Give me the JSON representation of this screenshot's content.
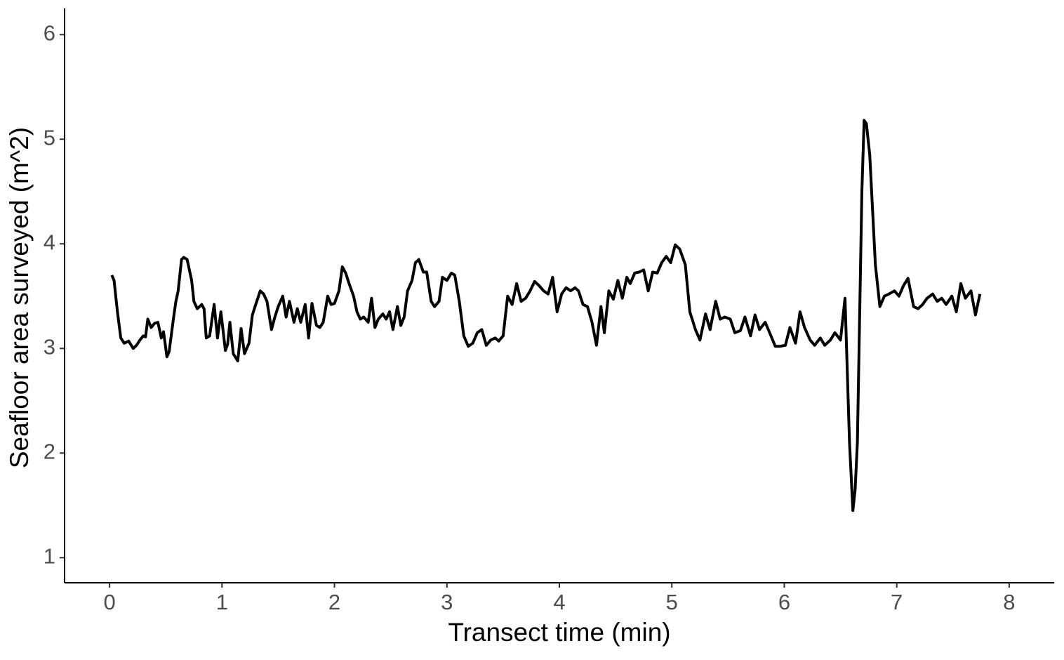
{
  "chart_data": {
    "type": "line",
    "x_label": "Transect time (min)",
    "y_label": "Seafloor area surveyed (m^2)",
    "color": "#000000",
    "xlim": [
      -0.4,
      8.4
    ],
    "ylim": [
      0.76,
      6.25
    ],
    "xticks": [
      0,
      1,
      2,
      3,
      4,
      5,
      6,
      7,
      8
    ],
    "yticks": [
      1,
      2,
      3,
      4,
      5,
      6
    ],
    "grid": false,
    "x": [
      0.02,
      0.04,
      0.07,
      0.1,
      0.13,
      0.17,
      0.21,
      0.24,
      0.27,
      0.3,
      0.32,
      0.34,
      0.37,
      0.4,
      0.43,
      0.46,
      0.48,
      0.51,
      0.53,
      0.57,
      0.59,
      0.61,
      0.64,
      0.66,
      0.69,
      0.73,
      0.75,
      0.78,
      0.82,
      0.84,
      0.86,
      0.89,
      0.93,
      0.96,
      0.99,
      1.03,
      1.05,
      1.07,
      1.1,
      1.14,
      1.17,
      1.2,
      1.24,
      1.27,
      1.3,
      1.34,
      1.37,
      1.4,
      1.44,
      1.47,
      1.5,
      1.54,
      1.57,
      1.6,
      1.64,
      1.67,
      1.7,
      1.74,
      1.77,
      1.8,
      1.84,
      1.87,
      1.9,
      1.94,
      1.97,
      2.0,
      2.04,
      2.07,
      2.1,
      2.13,
      2.17,
      2.2,
      2.23,
      2.26,
      2.3,
      2.33,
      2.36,
      2.39,
      2.43,
      2.46,
      2.49,
      2.52,
      2.56,
      2.59,
      2.62,
      2.65,
      2.69,
      2.72,
      2.75,
      2.79,
      2.82,
      2.86,
      2.89,
      2.93,
      2.96,
      3.0,
      3.04,
      3.07,
      3.11,
      3.15,
      3.19,
      3.23,
      3.27,
      3.31,
      3.35,
      3.39,
      3.43,
      3.46,
      3.5,
      3.54,
      3.58,
      3.62,
      3.66,
      3.7,
      3.74,
      3.78,
      3.82,
      3.86,
      3.9,
      3.94,
      3.98,
      4.02,
      4.06,
      4.1,
      4.14,
      4.17,
      4.21,
      4.25,
      4.29,
      4.33,
      4.37,
      4.4,
      4.44,
      4.48,
      4.52,
      4.56,
      4.6,
      4.63,
      4.67,
      4.71,
      4.75,
      4.79,
      4.83,
      4.87,
      4.91,
      4.95,
      4.99,
      5.03,
      5.07,
      5.12,
      5.16,
      5.21,
      5.25,
      5.3,
      5.34,
      5.39,
      5.43,
      5.47,
      5.52,
      5.56,
      5.61,
      5.65,
      5.7,
      5.74,
      5.78,
      5.83,
      5.87,
      5.92,
      5.96,
      6.01,
      6.05,
      6.1,
      6.14,
      6.18,
      6.23,
      6.27,
      6.32,
      6.36,
      6.41,
      6.45,
      6.5,
      6.54,
      6.58,
      6.61,
      6.63,
      6.65,
      6.69,
      6.71,
      6.73,
      6.76,
      6.81,
      6.85,
      6.89,
      6.93,
      6.98,
      7.02,
      7.06,
      7.1,
      7.15,
      7.19,
      7.23,
      7.27,
      7.32,
      7.36,
      7.4,
      7.44,
      7.49,
      7.53,
      7.57,
      7.61,
      7.66,
      7.7,
      7.74
    ],
    "values": [
      3.7,
      3.65,
      3.35,
      3.1,
      3.05,
      3.07,
      3.0,
      3.03,
      3.08,
      3.12,
      3.11,
      3.28,
      3.2,
      3.24,
      3.25,
      3.1,
      3.16,
      2.92,
      2.97,
      3.3,
      3.45,
      3.55,
      3.85,
      3.87,
      3.85,
      3.65,
      3.45,
      3.38,
      3.42,
      3.38,
      3.1,
      3.12,
      3.42,
      3.1,
      3.35,
      2.98,
      3.04,
      3.25,
      2.95,
      2.88,
      3.19,
      2.95,
      3.05,
      3.32,
      3.42,
      3.55,
      3.52,
      3.45,
      3.18,
      3.3,
      3.4,
      3.5,
      3.3,
      3.45,
      3.25,
      3.38,
      3.25,
      3.42,
      3.1,
      3.43,
      3.22,
      3.2,
      3.25,
      3.5,
      3.42,
      3.43,
      3.55,
      3.78,
      3.72,
      3.62,
      3.5,
      3.35,
      3.28,
      3.3,
      3.25,
      3.48,
      3.2,
      3.28,
      3.33,
      3.28,
      3.35,
      3.18,
      3.4,
      3.22,
      3.3,
      3.55,
      3.65,
      3.82,
      3.85,
      3.73,
      3.73,
      3.45,
      3.4,
      3.45,
      3.68,
      3.65,
      3.72,
      3.7,
      3.45,
      3.12,
      3.02,
      3.05,
      3.15,
      3.18,
      3.03,
      3.08,
      3.1,
      3.07,
      3.12,
      3.5,
      3.42,
      3.62,
      3.45,
      3.48,
      3.55,
      3.64,
      3.6,
      3.55,
      3.52,
      3.68,
      3.35,
      3.52,
      3.58,
      3.55,
      3.58,
      3.55,
      3.42,
      3.4,
      3.25,
      3.03,
      3.4,
      3.15,
      3.55,
      3.47,
      3.65,
      3.48,
      3.68,
      3.62,
      3.72,
      3.73,
      3.75,
      3.55,
      3.73,
      3.72,
      3.82,
      3.88,
      3.82,
      3.99,
      3.95,
      3.8,
      3.35,
      3.18,
      3.08,
      3.33,
      3.18,
      3.45,
      3.28,
      3.3,
      3.28,
      3.15,
      3.17,
      3.3,
      3.12,
      3.32,
      3.18,
      3.25,
      3.15,
      3.02,
      3.02,
      3.03,
      3.2,
      3.05,
      3.35,
      3.2,
      3.08,
      3.03,
      3.1,
      3.03,
      3.08,
      3.15,
      3.08,
      3.48,
      2.1,
      1.45,
      1.65,
      2.1,
      4.5,
      5.18,
      5.15,
      4.85,
      3.8,
      3.4,
      3.5,
      3.52,
      3.55,
      3.5,
      3.6,
      3.67,
      3.4,
      3.38,
      3.42,
      3.48,
      3.52,
      3.45,
      3.48,
      3.42,
      3.5,
      3.35,
      3.62,
      3.48,
      3.55,
      3.32,
      3.52
    ]
  }
}
